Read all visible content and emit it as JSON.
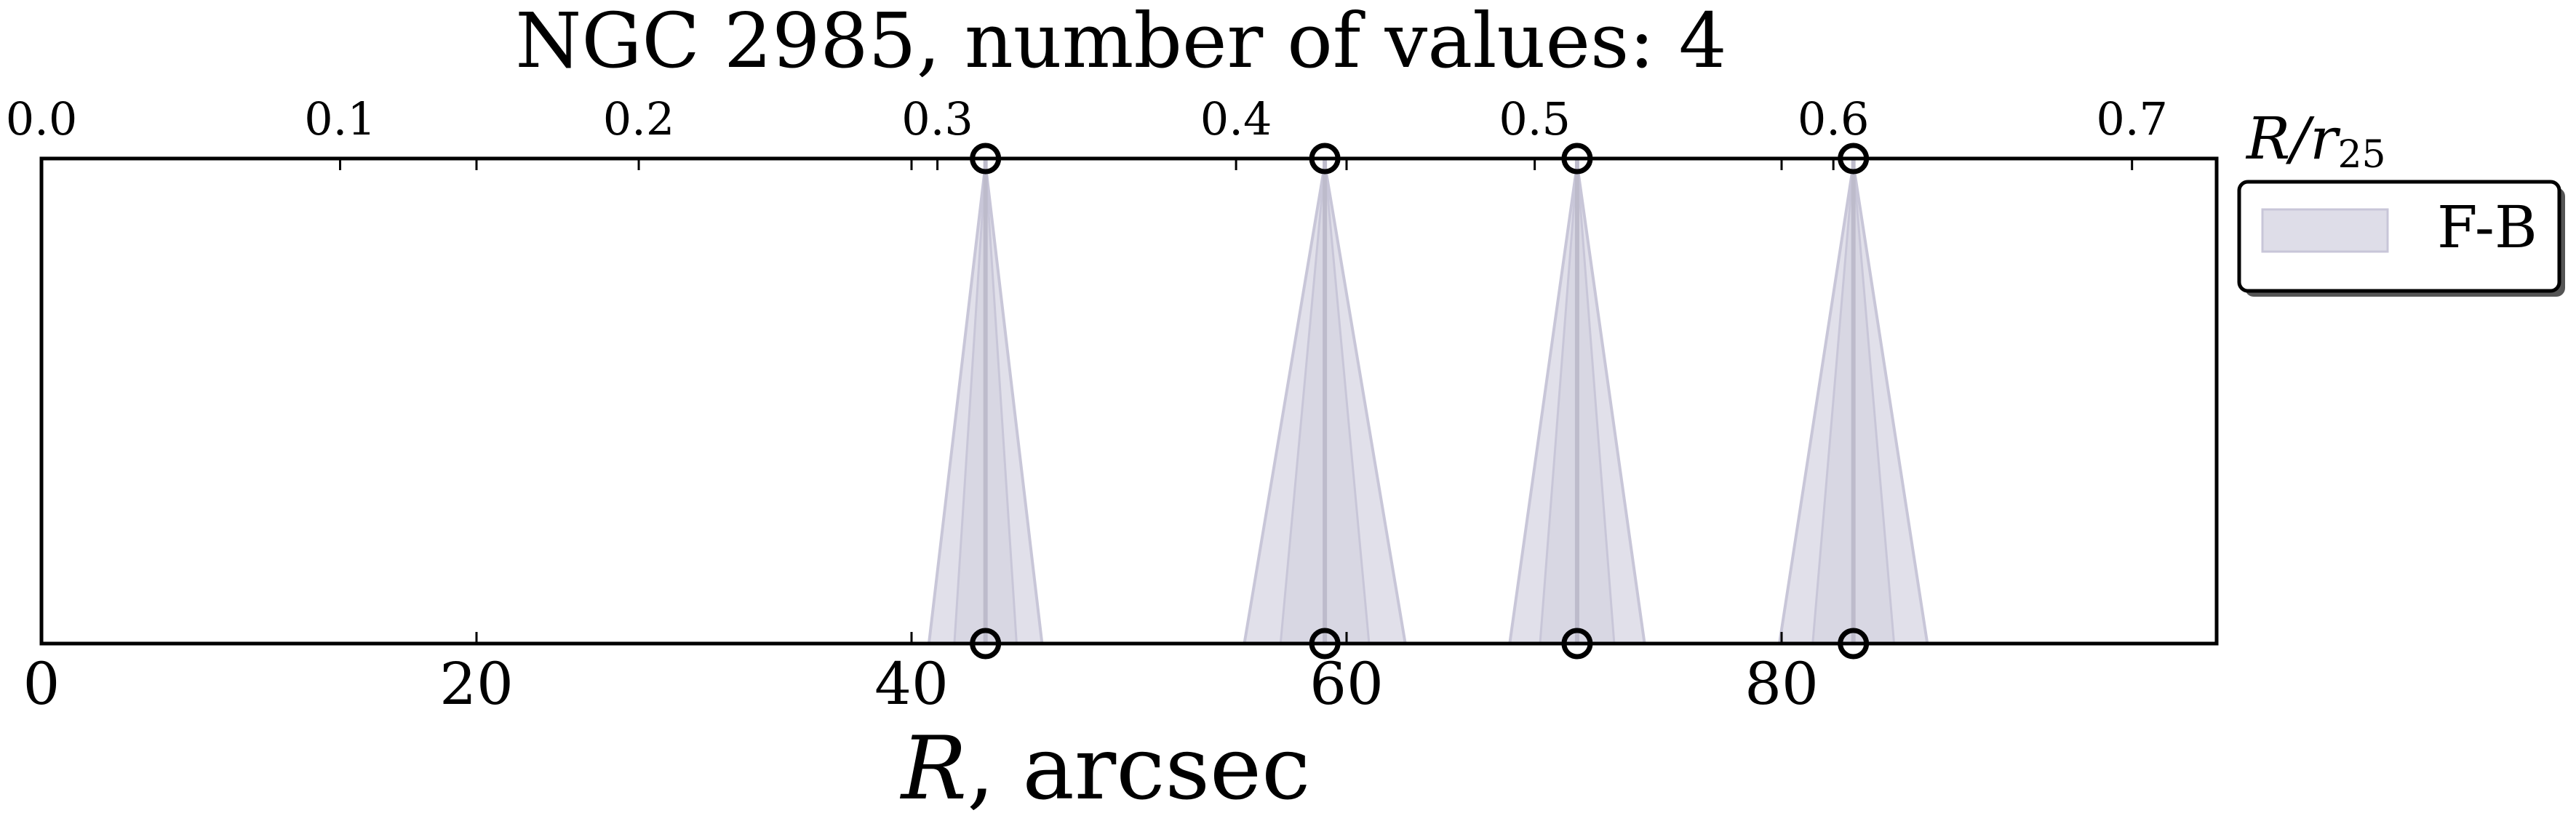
{
  "chart_data": {
    "type": "scatter",
    "title": "NGC 2985, number of values: 4",
    "xlabel": "R, arcsec",
    "xlabel_italic_part": "R",
    "xlabel_rest": ", arcsec",
    "secondary_xlabel": "R/r25",
    "secondary_xlabel_main": "R/r",
    "secondary_xlabel_sub": "25",
    "xlim": [
      0,
      100
    ],
    "bottom_ticks": [
      0,
      20,
      40,
      60,
      80
    ],
    "bottom_tick_labels": [
      "0",
      "20",
      "40",
      "60",
      "80"
    ],
    "top_ticks": [
      0.0,
      0.1,
      0.2,
      0.3,
      0.4,
      0.5,
      0.6,
      0.7
    ],
    "top_tick_labels": [
      "0.0",
      "0.1",
      "0.2",
      "0.3",
      "0.4",
      "0.5",
      "0.6",
      "0.7"
    ],
    "top_axis_scale_arcsec_per_unit": 137.3,
    "grid": false,
    "legend_position": "right",
    "series": [
      {
        "name": "F-B",
        "color": "#c8c6d8",
        "x": [
          43.4,
          59.0,
          70.6,
          83.3
        ],
        "half_width_bottom": [
          2.6,
          3.7,
          3.1,
          3.4
        ]
      }
    ]
  }
}
